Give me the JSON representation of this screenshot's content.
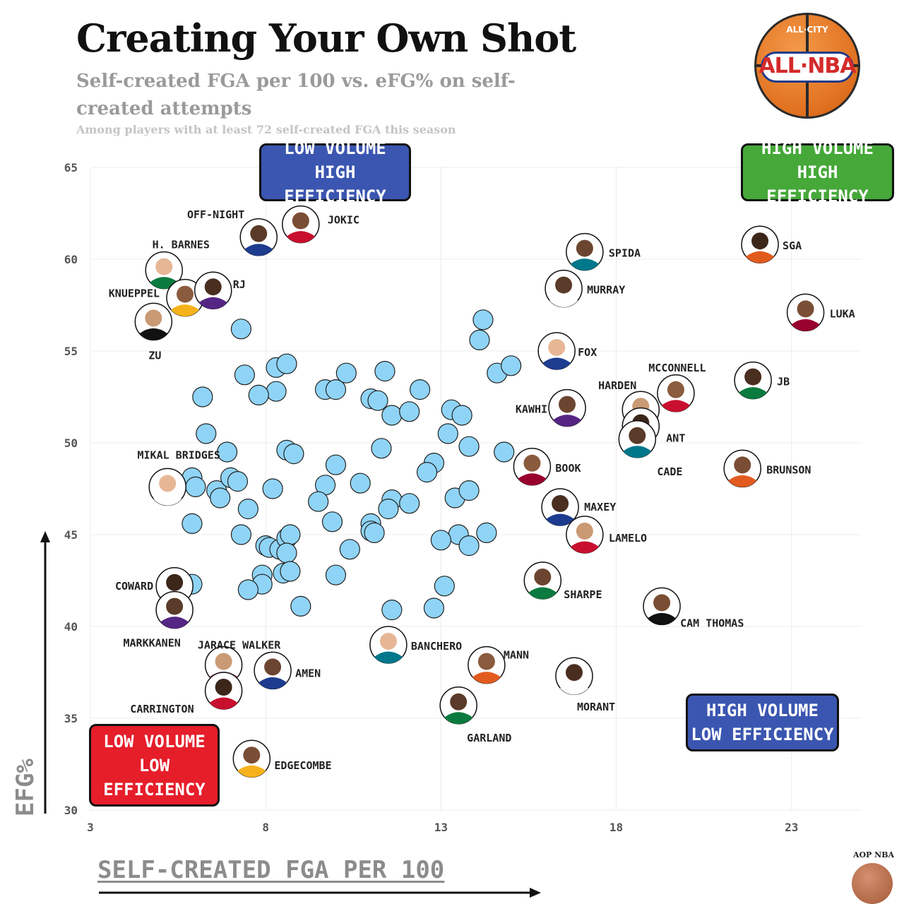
{
  "title": "Creating Your Own Shot",
  "subtitle": "Self-created FGA per 100 vs. eFG% on self-created attempts",
  "note": "Among players with at least 72 self-created FGA this season",
  "logo": {
    "top": "ALL·CITY",
    "main": "ALL·NBA"
  },
  "credit": "AOP NBA",
  "colors": {
    "bubble": "#8fd4f6",
    "low_low": "#e51e2a",
    "high_high": "#45a839",
    "blue_box": "#3b56b0"
  },
  "quadrants": {
    "low_high": [
      "LOW VOLUME",
      "HIGH EFFICIENCY"
    ],
    "high_high": [
      "HIGH VOLUME",
      "HIGH EFFICIENCY"
    ],
    "low_low": [
      "LOW VOLUME",
      "LOW",
      "EFFICIENCY"
    ],
    "high_low": [
      "HIGH VOLUME",
      "LOW EFFICIENCY"
    ]
  },
  "chart_data": {
    "type": "scatter",
    "title": "Creating Your Own Shot",
    "xlabel": "SELF-CREATED FGA PER 100",
    "ylabel": "EFG%",
    "xlim": [
      3,
      25
    ],
    "ylim": [
      30,
      65
    ],
    "x_ticks": [
      3,
      8,
      13,
      18,
      23
    ],
    "y_ticks": [
      30,
      35,
      40,
      45,
      50,
      55,
      60,
      65
    ],
    "grid": true,
    "labeled_players": [
      {
        "name": "OFF-NIGHT",
        "x": 7.8,
        "y": 61.2
      },
      {
        "name": "JOKIC",
        "x": 9.0,
        "y": 61.9
      },
      {
        "name": "H. BARNES",
        "x": 5.1,
        "y": 59.4
      },
      {
        "name": "KNUEPPEL",
        "x": 5.7,
        "y": 57.9
      },
      {
        "name": "RJ",
        "x": 6.5,
        "y": 58.3
      },
      {
        "name": "ZU",
        "x": 4.8,
        "y": 56.6
      },
      {
        "name": "SPIDA",
        "x": 17.1,
        "y": 60.4
      },
      {
        "name": "SGA",
        "x": 22.1,
        "y": 60.8
      },
      {
        "name": "MURRAY",
        "x": 16.5,
        "y": 58.4
      },
      {
        "name": "LUKA",
        "x": 23.4,
        "y": 57.1
      },
      {
        "name": "FOX",
        "x": 16.3,
        "y": 55.0
      },
      {
        "name": "MCCONNELL",
        "x": 19.7,
        "y": 52.7
      },
      {
        "name": "JB",
        "x": 21.9,
        "y": 53.4
      },
      {
        "name": "HARDEN",
        "x": 18.7,
        "y": 51.8
      },
      {
        "name": "KAWHI",
        "x": 16.6,
        "y": 51.9
      },
      {
        "name": "ANT",
        "x": 18.7,
        "y": 50.9
      },
      {
        "name": "CADE",
        "x": 18.6,
        "y": 50.2
      },
      {
        "name": "BRUNSON",
        "x": 21.6,
        "y": 48.6
      },
      {
        "name": "MIKAL BRIDGES",
        "x": 5.2,
        "y": 47.6
      },
      {
        "name": "BOOK",
        "x": 15.6,
        "y": 48.7
      },
      {
        "name": "MAXEY",
        "x": 16.4,
        "y": 46.5
      },
      {
        "name": "LAMELO",
        "x": 17.1,
        "y": 45.0
      },
      {
        "name": "SHARPE",
        "x": 15.9,
        "y": 42.5
      },
      {
        "name": "COWARD",
        "x": 5.4,
        "y": 42.2
      },
      {
        "name": "MARKKANEN",
        "x": 5.4,
        "y": 40.9
      },
      {
        "name": "CAM THOMAS",
        "x": 19.3,
        "y": 41.1
      },
      {
        "name": "BANCHERO",
        "x": 11.5,
        "y": 39.0
      },
      {
        "name": "MANN",
        "x": 14.3,
        "y": 37.9
      },
      {
        "name": "MORANT",
        "x": 16.8,
        "y": 37.3
      },
      {
        "name": "JARACE WALKER",
        "x": 6.8,
        "y": 37.9
      },
      {
        "name": "AMEN",
        "x": 8.2,
        "y": 37.6
      },
      {
        "name": "CARRINGTON",
        "x": 6.8,
        "y": 36.5
      },
      {
        "name": "GARLAND",
        "x": 13.5,
        "y": 35.7
      },
      {
        "name": "EDGECOMBE",
        "x": 7.6,
        "y": 32.8
      }
    ],
    "other_players": [
      [
        7.3,
        56.2
      ],
      [
        7.4,
        53.7
      ],
      [
        8.3,
        54.1
      ],
      [
        8.6,
        54.3
      ],
      [
        8.3,
        52.8
      ],
      [
        7.8,
        52.6
      ],
      [
        6.2,
        52.5
      ],
      [
        9.7,
        52.9
      ],
      [
        10.0,
        52.9
      ],
      [
        10.3,
        53.8
      ],
      [
        11.0,
        52.4
      ],
      [
        11.2,
        52.3
      ],
      [
        11.4,
        53.9
      ],
      [
        11.6,
        51.5
      ],
      [
        12.1,
        51.7
      ],
      [
        12.4,
        52.9
      ],
      [
        13.3,
        51.8
      ],
      [
        13.6,
        51.5
      ],
      [
        13.2,
        50.5
      ],
      [
        13.8,
        49.8
      ],
      [
        14.8,
        49.5
      ],
      [
        14.1,
        55.6
      ],
      [
        14.2,
        56.7
      ],
      [
        14.6,
        53.8
      ],
      [
        15.0,
        54.2
      ],
      [
        6.3,
        50.5
      ],
      [
        6.9,
        49.5
      ],
      [
        8.6,
        49.6
      ],
      [
        8.8,
        49.4
      ],
      [
        10.0,
        48.8
      ],
      [
        11.3,
        49.7
      ],
      [
        12.8,
        48.9
      ],
      [
        12.6,
        48.4
      ],
      [
        5.9,
        48.1
      ],
      [
        6.0,
        47.6
      ],
      [
        6.6,
        47.4
      ],
      [
        6.7,
        47.0
      ],
      [
        7.0,
        48.1
      ],
      [
        7.2,
        47.9
      ],
      [
        8.2,
        47.5
      ],
      [
        9.7,
        47.7
      ],
      [
        9.5,
        46.8
      ],
      [
        10.7,
        47.8
      ],
      [
        11.6,
        46.9
      ],
      [
        11.5,
        46.4
      ],
      [
        12.1,
        46.7
      ],
      [
        13.4,
        47.0
      ],
      [
        13.8,
        47.4
      ],
      [
        7.5,
        46.4
      ],
      [
        5.9,
        45.6
      ],
      [
        7.3,
        45.0
      ],
      [
        9.9,
        45.7
      ],
      [
        11.0,
        45.6
      ],
      [
        11.0,
        45.2
      ],
      [
        11.1,
        45.1
      ],
      [
        14.3,
        45.1
      ],
      [
        13.5,
        45.0
      ],
      [
        13.0,
        44.7
      ],
      [
        13.8,
        44.4
      ],
      [
        8.0,
        44.4
      ],
      [
        8.1,
        44.3
      ],
      [
        8.4,
        44.2
      ],
      [
        8.6,
        44.8
      ],
      [
        8.7,
        45.0
      ],
      [
        8.6,
        44.0
      ],
      [
        10.4,
        44.2
      ],
      [
        7.9,
        42.8
      ],
      [
        7.9,
        42.3
      ],
      [
        8.5,
        42.9
      ],
      [
        8.7,
        43.0
      ],
      [
        7.5,
        42.0
      ],
      [
        10.0,
        42.8
      ],
      [
        5.9,
        42.3
      ],
      [
        9.0,
        41.1
      ],
      [
        11.6,
        40.9
      ],
      [
        12.8,
        41.0
      ],
      [
        13.1,
        42.2
      ]
    ]
  }
}
